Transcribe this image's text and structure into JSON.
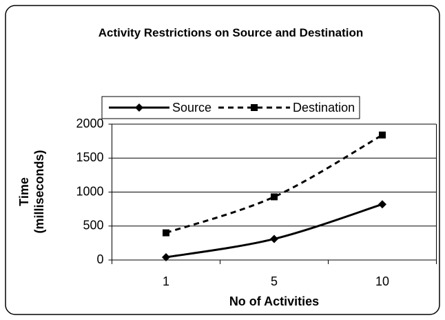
{
  "chart_data": {
    "type": "line",
    "title": "Activity Restrictions on Source and Destination",
    "x_label": "No of Activities",
    "y_label": "Time (milliseconds)",
    "categories": [
      "1",
      "5",
      "10"
    ],
    "series": [
      {
        "name": "Source",
        "color": "#000000",
        "line_style": "solid",
        "marker": "diamond",
        "values": [
          40,
          310,
          820
        ]
      },
      {
        "name": "Destination",
        "color": "#000000",
        "line_style": "dashed",
        "marker": "square",
        "values": [
          400,
          930,
          1840
        ]
      }
    ],
    "ylim": [
      0,
      2000
    ],
    "yticks": [
      0,
      500,
      1000,
      1500,
      2000
    ],
    "grid": true,
    "legend": "top"
  }
}
